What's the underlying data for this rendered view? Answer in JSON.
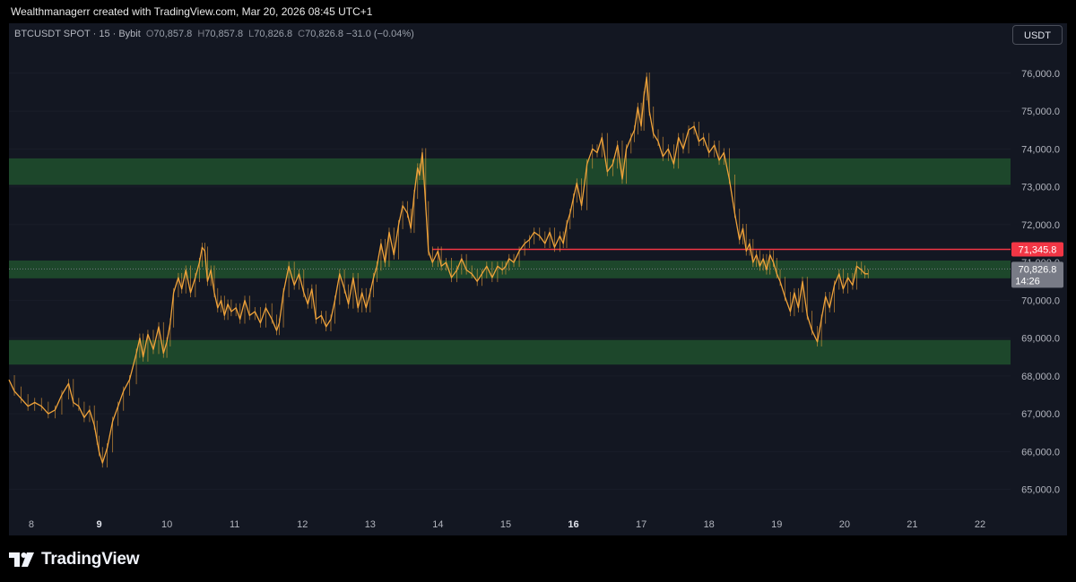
{
  "header": {
    "credit": "Wealthmanagerr created with TradingView.com, Mar 20, 2026 08:45 UTC+1"
  },
  "legend": {
    "symbol": "BTCUSDT SPOT · 15 · Bybit",
    "open_label": "O",
    "open": "70,857.8",
    "high_label": "H",
    "high": "70,857.8",
    "low_label": "L",
    "low": "70,826.8",
    "close_label": "C",
    "close": "70,826.8",
    "change": "−31.0 (−0.04%)"
  },
  "toolbar": {
    "currency_label": "USDT"
  },
  "footer": {
    "brand": "TradingView"
  },
  "colors": {
    "background": "#131722",
    "candle": "#f0a33a",
    "zone": "#1e4a2c",
    "resistance_line": "#f23645",
    "current_price": "#787b86"
  },
  "chart_data": {
    "type": "line",
    "title": "",
    "xlabel": "",
    "ylabel": "",
    "ylim": [
      64400,
      76800
    ],
    "y_ticks": [
      "65,000.0",
      "66,000.0",
      "67,000.0",
      "68,000.0",
      "69,000.0",
      "70,000.0",
      "71,000.0",
      "72,000.0",
      "73,000.0",
      "74,000.0",
      "75,000.0",
      "76,000.0"
    ],
    "y_tick_values": [
      65000,
      66000,
      67000,
      68000,
      69000,
      70000,
      71000,
      72000,
      73000,
      74000,
      75000,
      76000
    ],
    "x_ticks": [
      "8",
      "9",
      "10",
      "11",
      "12",
      "13",
      "14",
      "15",
      "16",
      "17",
      "18",
      "19",
      "20",
      "21",
      "22"
    ],
    "x_tick_values": [
      8,
      9,
      10,
      11,
      12,
      13,
      14,
      15,
      16,
      17,
      18,
      19,
      20,
      21,
      22
    ],
    "x_bold_ticks": [
      "9",
      "16"
    ],
    "xlim": [
      7.67,
      22.45
    ],
    "series": [
      {
        "x": [
          7.67,
          7.75,
          7.85,
          7.95,
          8.05,
          8.15,
          8.25,
          8.35,
          8.45,
          8.55,
          8.62,
          8.7,
          8.78,
          8.86,
          8.93,
          8.97,
          9.0,
          9.05,
          9.12,
          9.2,
          9.28,
          9.36,
          9.45,
          9.55,
          9.6,
          9.65,
          9.72,
          9.8,
          9.88,
          9.95,
          10.0,
          10.05,
          10.1,
          10.17,
          10.22,
          10.28,
          10.35,
          10.42,
          10.48,
          10.52,
          10.56,
          10.6,
          10.65,
          10.7,
          10.75,
          10.8,
          10.85,
          10.9,
          10.95,
          11.02,
          11.08,
          11.15,
          11.22,
          11.3,
          11.38,
          11.46,
          11.55,
          11.62,
          11.66,
          11.72,
          11.8,
          11.88,
          11.95,
          12.02,
          12.08,
          12.14,
          12.2,
          12.28,
          12.35,
          12.42,
          12.48,
          12.55,
          12.62,
          12.68,
          12.75,
          12.82,
          12.88,
          12.94,
          13.0,
          13.05,
          13.1,
          13.16,
          13.22,
          13.28,
          13.35,
          13.42,
          13.48,
          13.55,
          13.6,
          13.65,
          13.7,
          13.73,
          13.77,
          13.82,
          13.86,
          13.92,
          14.0,
          14.05,
          14.12,
          14.2,
          14.28,
          14.35,
          14.42,
          14.5,
          14.58,
          14.65,
          14.72,
          14.8,
          14.88,
          14.95,
          15.0,
          15.05,
          15.12,
          15.2,
          15.28,
          15.35,
          15.42,
          15.5,
          15.58,
          15.65,
          15.72,
          15.8,
          15.85,
          15.9,
          15.95,
          16.0,
          16.05,
          16.12,
          16.2,
          16.28,
          16.35,
          16.42,
          16.5,
          16.58,
          16.65,
          16.72,
          16.78,
          16.85,
          16.9,
          16.95,
          17.0,
          17.04,
          17.08,
          17.12,
          17.18,
          17.25,
          17.32,
          17.4,
          17.48,
          17.55,
          17.62,
          17.7,
          17.78,
          17.85,
          17.92,
          18.0,
          18.08,
          18.15,
          18.22,
          18.3,
          18.38,
          18.45,
          18.5,
          18.55,
          18.6,
          18.65,
          18.7,
          18.75,
          18.8,
          18.85,
          18.9,
          18.95,
          19.0,
          19.05,
          19.12,
          19.2,
          19.26,
          19.32,
          19.38,
          19.45,
          19.52,
          19.6,
          19.66,
          19.72,
          19.78,
          19.85,
          19.92,
          19.98,
          20.05,
          20.12,
          20.18,
          20.25,
          20.3,
          20.35
        ],
        "values": [
          67900,
          67600,
          67400,
          67200,
          67300,
          67200,
          67000,
          67100,
          67500,
          67800,
          67300,
          67200,
          66900,
          67100,
          66700,
          66300,
          66000,
          65700,
          66100,
          66800,
          67200,
          67600,
          67900,
          68600,
          69000,
          68500,
          69100,
          68700,
          69300,
          68600,
          68900,
          69400,
          70200,
          70600,
          70300,
          70800,
          70200,
          70600,
          71000,
          71400,
          71300,
          70500,
          70800,
          70200,
          69800,
          70000,
          69600,
          69900,
          69700,
          69800,
          69500,
          70000,
          69600,
          69700,
          69400,
          69800,
          69500,
          69200,
          69400,
          70200,
          70900,
          70400,
          70700,
          70200,
          69900,
          70300,
          69500,
          69600,
          69300,
          69500,
          70000,
          70700,
          70300,
          69900,
          70600,
          69800,
          70200,
          69800,
          70200,
          70600,
          70900,
          71500,
          71000,
          71800,
          71200,
          72000,
          72500,
          72300,
          71900,
          72800,
          73500,
          73300,
          73900,
          72500,
          71300,
          71000,
          71300,
          70900,
          71000,
          70600,
          70800,
          71100,
          70800,
          70700,
          70500,
          70700,
          70900,
          70600,
          70900,
          70800,
          70900,
          71100,
          71000,
          71300,
          71500,
          71600,
          71800,
          71700,
          71500,
          71800,
          71400,
          71700,
          71500,
          72000,
          72300,
          72700,
          73100,
          72500,
          73600,
          74000,
          73900,
          74300,
          73400,
          73600,
          74100,
          73200,
          74000,
          74300,
          74500,
          75100,
          74600,
          75400,
          75900,
          75000,
          74400,
          74200,
          73800,
          74000,
          73600,
          74300,
          74000,
          74500,
          74600,
          74200,
          74300,
          73900,
          74100,
          73700,
          73900,
          73200,
          72300,
          71600,
          71900,
          71300,
          71500,
          71000,
          71200,
          70900,
          71100,
          70800,
          71200,
          71000,
          70700,
          70500,
          70100,
          69700,
          70200,
          69800,
          70500,
          69600,
          69200,
          68900,
          69500,
          70100,
          69800,
          70400,
          70700,
          70300,
          70600,
          70400,
          70900,
          70800,
          70700,
          70700
        ]
      }
    ],
    "zones": [
      {
        "low": 73050,
        "high": 73750
      },
      {
        "low": 70580,
        "high": 71050
      },
      {
        "low": 68300,
        "high": 68950
      }
    ],
    "levels": [
      {
        "price": 71345.8,
        "label": "71,345.8",
        "x_start": 13.92
      }
    ],
    "current": {
      "price": 70826.8,
      "label": "70,826.8",
      "countdown": "14:26"
    }
  }
}
